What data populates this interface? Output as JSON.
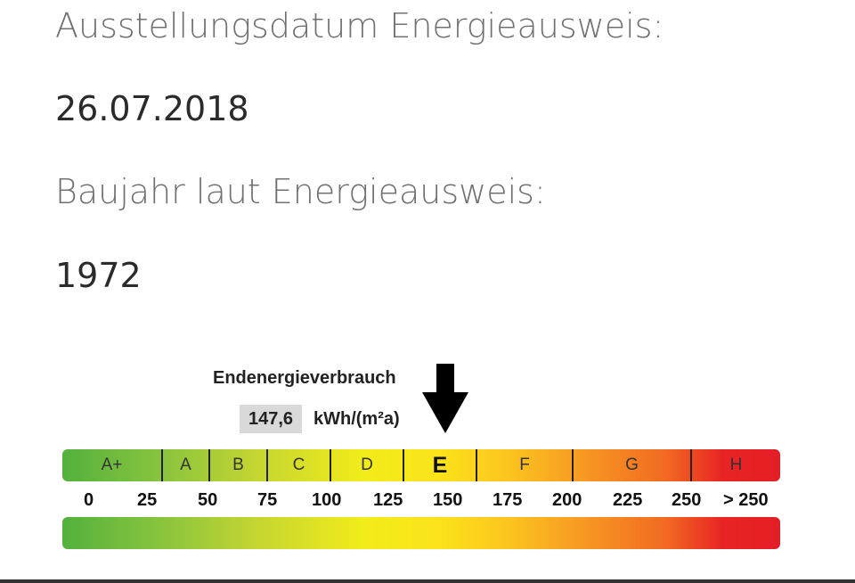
{
  "issue_date": {
    "label": "Ausstellungsdatum Energieausweis:",
    "value": "26.07.2018"
  },
  "construction_year": {
    "label": "Baujahr laut Energieausweis:",
    "value": "1972"
  },
  "energy_scale": {
    "title": "Endenergieverbrauch",
    "value": "147,6",
    "unit": "kWh/(m²a)",
    "current_class": "E",
    "marker_value": 147.6,
    "classes": [
      "A+",
      "A",
      "B",
      "C",
      "D",
      "E",
      "F",
      "G",
      "H"
    ],
    "ticks": [
      "0",
      "25",
      "50",
      "75",
      "100",
      "125",
      "150",
      "175",
      "200",
      "225",
      "250",
      "> 250"
    ],
    "colors": {
      "green": "#53b13d",
      "yellow": "#f2ec1a",
      "orange": "#f79b23",
      "red": "#e41e26"
    },
    "icons": {
      "marker": "arrow-down-icon"
    }
  }
}
